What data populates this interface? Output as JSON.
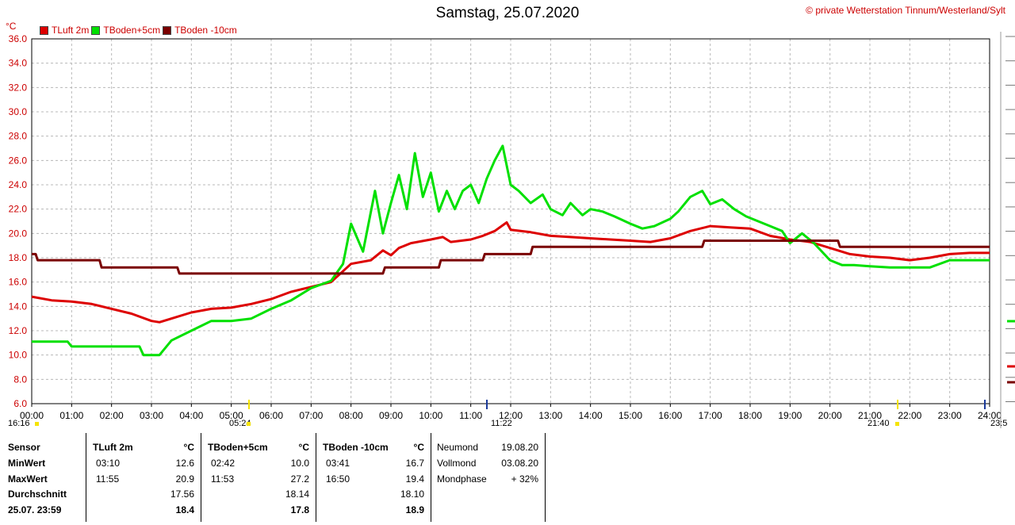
{
  "title": "Samstag, 25.07.2020",
  "copyright_symbol": "©",
  "copyright": "private Wetterstation Tinnum/Westerland/Sylt",
  "chart_data": {
    "type": "line",
    "ylabel": "°C",
    "ylim": [
      6,
      36
    ],
    "yticks": [
      "6.0",
      "8.0",
      "10.0",
      "12.0",
      "14.0",
      "16.0",
      "18.0",
      "20.0",
      "22.0",
      "24.0",
      "26.0",
      "28.0",
      "30.0",
      "32.0",
      "34.0",
      "36.0"
    ],
    "xlim": [
      0,
      24
    ],
    "xticks": [
      "00:00",
      "01:00",
      "02:00",
      "03:00",
      "04:00",
      "05:00",
      "06:00",
      "07:00",
      "08:00",
      "09:00",
      "10:00",
      "11:00",
      "12:00",
      "13:00",
      "14:00",
      "15:00",
      "16:00",
      "17:00",
      "18:00",
      "19:00",
      "20:00",
      "21:00",
      "22:00",
      "23:00",
      "24:00"
    ],
    "grid": true,
    "series": [
      {
        "name": "TLuft 2m",
        "color": "#dd0000",
        "x": [
          0,
          0.5,
          1,
          1.5,
          2,
          2.5,
          3,
          3.2,
          3.5,
          4,
          4.5,
          5,
          5.5,
          6,
          6.5,
          7,
          7.5,
          8,
          8.5,
          8.8,
          9,
          9.2,
          9.5,
          10,
          10.3,
          10.5,
          11,
          11.3,
          11.6,
          11.9,
          12,
          12.5,
          13,
          13.5,
          14,
          14.5,
          15,
          15.5,
          16,
          16.5,
          17,
          17.5,
          18,
          18.5,
          19,
          19.5,
          20,
          20.5,
          21,
          21.5,
          22,
          22.5,
          23,
          23.5,
          24
        ],
        "values": [
          14.8,
          14.5,
          14.4,
          14.2,
          13.8,
          13.4,
          12.8,
          12.7,
          13.0,
          13.5,
          13.8,
          13.9,
          14.2,
          14.6,
          15.2,
          15.6,
          16.0,
          17.5,
          17.8,
          18.6,
          18.2,
          18.8,
          19.2,
          19.5,
          19.7,
          19.3,
          19.5,
          19.8,
          20.2,
          20.9,
          20.3,
          20.1,
          19.8,
          19.7,
          19.6,
          19.5,
          19.4,
          19.3,
          19.6,
          20.2,
          20.6,
          20.5,
          20.4,
          19.8,
          19.5,
          19.3,
          18.8,
          18.3,
          18.1,
          18.0,
          17.8,
          18.0,
          18.3,
          18.4,
          18.4
        ],
        "min": {
          "time": "03:10",
          "value": 12.6
        },
        "max": {
          "time": "11:55",
          "value": 20.9
        }
      },
      {
        "name": "TBoden+5cm",
        "color": "#00e000",
        "x": [
          0,
          0.9,
          1,
          2,
          2.7,
          2.8,
          3.2,
          3.5,
          4,
          4.5,
          5,
          5.5,
          6,
          6.5,
          7,
          7.5,
          7.8,
          8,
          8.3,
          8.6,
          8.8,
          9,
          9.2,
          9.4,
          9.6,
          9.8,
          10,
          10.2,
          10.4,
          10.6,
          10.8,
          11,
          11.2,
          11.4,
          11.6,
          11.8,
          12,
          12.2,
          12.5,
          12.8,
          13,
          13.3,
          13.5,
          13.8,
          14,
          14.3,
          14.6,
          15,
          15.3,
          15.6,
          16,
          16.2,
          16.5,
          16.8,
          17,
          17.3,
          17.6,
          17.9,
          18.2,
          18.5,
          18.8,
          19,
          19.3,
          19.6,
          20,
          20.3,
          20.6,
          21,
          21.5,
          22,
          22.5,
          23,
          23.5,
          24
        ],
        "values": [
          11.1,
          11.1,
          10.7,
          10.7,
          10.7,
          10.0,
          10.0,
          11.2,
          12.0,
          12.8,
          12.8,
          13.0,
          13.8,
          14.5,
          15.5,
          16.1,
          17.5,
          20.8,
          18.5,
          23.5,
          20.0,
          22.5,
          24.8,
          22.0,
          26.6,
          23.0,
          25.0,
          21.8,
          23.5,
          22.0,
          23.5,
          24.0,
          22.5,
          24.5,
          26.0,
          27.2,
          24.0,
          23.5,
          22.5,
          23.2,
          22.0,
          21.5,
          22.5,
          21.5,
          22.0,
          21.8,
          21.4,
          20.8,
          20.4,
          20.6,
          21.2,
          21.8,
          23.0,
          23.5,
          22.4,
          22.8,
          22.0,
          21.4,
          21.0,
          20.6,
          20.2,
          19.2,
          20.0,
          19.2,
          17.8,
          17.4,
          17.4,
          17.3,
          17.2,
          17.2,
          17.2,
          17.8,
          17.8,
          17.8
        ],
        "min": {
          "time": "02:42",
          "value": 10.0
        },
        "max": {
          "time": "11:53",
          "value": 27.2
        }
      },
      {
        "name": "TBoden -10cm",
        "color": "#7a0000",
        "x": [
          0,
          0.1,
          0.15,
          1.7,
          1.75,
          3.65,
          3.7,
          7.4,
          8.8,
          8.85,
          10.2,
          10.25,
          11.3,
          11.35,
          12.5,
          12.55,
          16.8,
          16.85,
          20.2,
          20.25,
          24
        ],
        "values": [
          18.3,
          18.3,
          17.8,
          17.8,
          17.2,
          17.2,
          16.7,
          16.7,
          16.7,
          17.2,
          17.2,
          17.8,
          17.8,
          18.3,
          18.3,
          18.9,
          18.9,
          19.4,
          19.4,
          18.9,
          18.9
        ],
        "min": {
          "time": "03:41",
          "value": 16.7
        },
        "max": {
          "time": "16:50",
          "value": 19.4
        }
      }
    ]
  },
  "legend": [
    {
      "label": "TLuft 2m",
      "color": "#dd0000"
    },
    {
      "label": "TBoden+5cm",
      "color": "#00e000"
    },
    {
      "label": "TBoden -10cm",
      "color": "#7a0000"
    }
  ],
  "markers": {
    "start": "16:16",
    "sunrise": "05:24",
    "noon": "11:22",
    "sunset": "21:40",
    "end": "23:5"
  },
  "table": {
    "labels": [
      "Sensor",
      "MinWert",
      "MaxWert",
      "Durchschnitt",
      "25.07. 23:59"
    ],
    "unit": "°C",
    "cols": [
      {
        "title": "TLuft 2m",
        "min_time": "03:10",
        "min_val": "12.6",
        "max_time": "11:55",
        "max_val": "20.9",
        "avg": "17.56",
        "current": "18.4"
      },
      {
        "title": "TBoden+5cm",
        "min_time": "02:42",
        "min_val": "10.0",
        "max_time": "11:53",
        "max_val": "27.2",
        "avg": "18.14",
        "current": "17.8"
      },
      {
        "title": "TBoden -10cm",
        "min_time": "03:41",
        "min_val": "16.7",
        "max_time": "16:50",
        "max_val": "19.4",
        "avg": "18.10",
        "current": "18.9"
      }
    ],
    "moon": [
      {
        "label": "Neumond",
        "value": "19.08.20"
      },
      {
        "label": "Vollmond",
        "value": "03.08.20"
      },
      {
        "label": "Mondphase",
        "value": "+ 32%"
      }
    ]
  }
}
